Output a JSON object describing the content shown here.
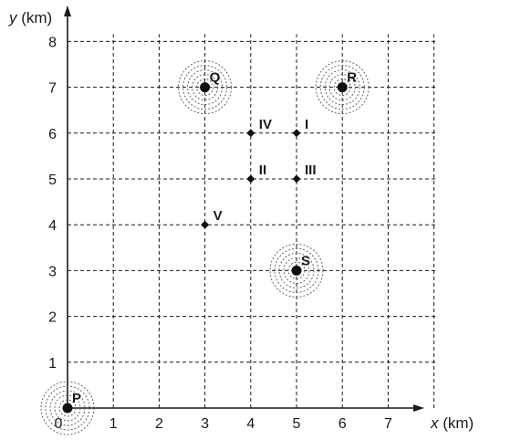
{
  "chart_data": {
    "type": "scatter",
    "xlabel_var": "x",
    "xlabel_unit": " (km)",
    "ylabel_var": "y",
    "ylabel_unit": " (km)",
    "xlim": [
      0,
      8
    ],
    "ylim": [
      0,
      8
    ],
    "x_ticks": [
      0,
      1,
      2,
      3,
      4,
      5,
      6,
      7
    ],
    "y_ticks": [
      1,
      2,
      3,
      4,
      5,
      6,
      7,
      8
    ],
    "grid": true,
    "stations": [
      {
        "label": "P",
        "x": 0,
        "y": 0
      },
      {
        "label": "Q",
        "x": 3,
        "y": 7
      },
      {
        "label": "R",
        "x": 6,
        "y": 7
      },
      {
        "label": "S",
        "x": 5,
        "y": 3
      }
    ],
    "points": [
      {
        "label": "I",
        "x": 5,
        "y": 6
      },
      {
        "label": "II",
        "x": 4,
        "y": 5
      },
      {
        "label": "III",
        "x": 5,
        "y": 5
      },
      {
        "label": "IV",
        "x": 4,
        "y": 6
      },
      {
        "label": "V",
        "x": 3,
        "y": 4
      }
    ]
  }
}
